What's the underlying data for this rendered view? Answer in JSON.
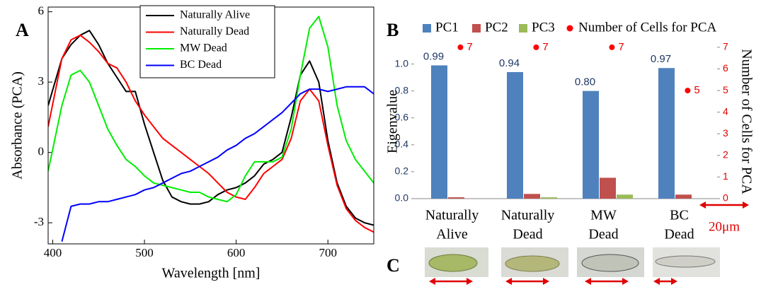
{
  "chart_data": [
    {
      "type": "line",
      "panel_label": "A",
      "x_label": "Wavelength [nm]",
      "y_label": "Absorbance (PCA)",
      "x": [
        395,
        410,
        420,
        430,
        440,
        450,
        460,
        470,
        480,
        490,
        500,
        510,
        520,
        530,
        540,
        550,
        560,
        570,
        580,
        590,
        600,
        610,
        620,
        630,
        640,
        650,
        660,
        670,
        680,
        690,
        700,
        710,
        720,
        730,
        740,
        750
      ],
      "series": [
        {
          "name": "Naturally Alive",
          "color": "#000000",
          "values": [
            2.0,
            4.0,
            4.6,
            5.0,
            5.2,
            4.6,
            3.8,
            3.2,
            2.6,
            2.6,
            1.2,
            0,
            -1.2,
            -1.9,
            -2.1,
            -2.2,
            -2.2,
            -2.1,
            -1.8,
            -1.6,
            -1.5,
            -1.3,
            -1.0,
            -0.5,
            -0.3,
            0.0,
            1.5,
            3.3,
            3.9,
            3.0,
            0.5,
            -1.3,
            -2.3,
            -2.8,
            -3.0,
            -3.1
          ]
        },
        {
          "name": "Naturally Dead",
          "color": "#ff0000",
          "values": [
            1.1,
            4.0,
            4.8,
            5.0,
            4.7,
            4.3,
            3.8,
            3.6,
            3.0,
            2.2,
            1.6,
            1.1,
            0.6,
            0.3,
            0,
            -0.3,
            -0.6,
            -0.9,
            -1.3,
            -1.7,
            -1.9,
            -2.0,
            -1.5,
            -0.9,
            -0.6,
            -0.3,
            0.6,
            2.2,
            2.7,
            2.2,
            0.3,
            -1.4,
            -2.4,
            -2.9,
            -3.2,
            -3.4
          ]
        },
        {
          "name": "MW Dead",
          "color": "#00ee00",
          "values": [
            -0.8,
            2.0,
            3.3,
            3.5,
            3.0,
            2.0,
            1.0,
            0.3,
            -0.3,
            -0.6,
            -1.0,
            -1.3,
            -1.4,
            -1.5,
            -1.6,
            -1.7,
            -1.7,
            -1.9,
            -2.0,
            -2.1,
            -1.8,
            -1.0,
            -0.4,
            -0.4,
            -0.4,
            -0.2,
            1.0,
            3.3,
            5.3,
            5.8,
            4.5,
            2.0,
            0.5,
            -0.3,
            -0.8,
            -1.3
          ]
        },
        {
          "name": "BC Dead",
          "color": "#0000ff",
          "values": [
            null,
            -3.8,
            -2.3,
            -2.2,
            -2.2,
            -2.1,
            -2.1,
            -2.0,
            -1.9,
            -1.8,
            -1.6,
            -1.5,
            -1.3,
            -1.1,
            -0.9,
            -0.8,
            -0.6,
            -0.4,
            -0.2,
            0.1,
            0.3,
            0.6,
            0.8,
            1.1,
            1.4,
            1.7,
            2.1,
            2.5,
            2.7,
            2.7,
            2.6,
            2.7,
            2.8,
            2.8,
            2.8,
            2.5
          ]
        }
      ],
      "xlim": [
        395,
        750
      ],
      "xticks": [
        400,
        500,
        600,
        700
      ],
      "ylim": [
        -3.9,
        6.2
      ],
      "yticks": [
        -3,
        0,
        3,
        6
      ]
    },
    {
      "type": "bar",
      "panel_label": "B",
      "y_label": "Eigenvalue",
      "y2_label": "Number of Cells for PCA",
      "categories": [
        [
          "Naturally",
          "Alive"
        ],
        [
          "Naturally",
          "Dead"
        ],
        [
          "MW",
          "Dead"
        ],
        [
          "BC",
          "Dead"
        ]
      ],
      "series": [
        {
          "name": "PC1",
          "color": "#4f81bd",
          "values": [
            0.99,
            0.94,
            0.8,
            0.97
          ],
          "value_labels": [
            "0.99",
            "0.94",
            "0.80",
            "0.97"
          ]
        },
        {
          "name": "PC2",
          "color": "#c0504d",
          "values": [
            0.01,
            0.035,
            0.155,
            0.03
          ]
        },
        {
          "name": "PC3",
          "color": "#9bbb59",
          "values": [
            0,
            0.01,
            0.03,
            0
          ]
        },
        {
          "name": "Number of Cells for PCA",
          "color": "#ff0000",
          "type": "scatter",
          "axis": "y2",
          "values": [
            7,
            7,
            7,
            5
          ]
        }
      ],
      "ylim": [
        0,
        1.15
      ],
      "yticks": [
        {
          "value": 0,
          "label": "0.0"
        },
        {
          "value": 0.2,
          "label": "0.2"
        },
        {
          "value": 0.4,
          "label": "0.4"
        },
        {
          "value": 0.6,
          "label": "0.6"
        },
        {
          "value": 0.8,
          "label": "0.8"
        },
        {
          "value": 1,
          "label": "1.0"
        }
      ],
      "y2lim": [
        0,
        7.16
      ],
      "y2ticks": [
        0,
        1,
        2,
        3,
        4,
        5,
        6,
        7
      ]
    }
  ],
  "panel_c": {
    "label": "C",
    "scale_bar": "20μm"
  }
}
